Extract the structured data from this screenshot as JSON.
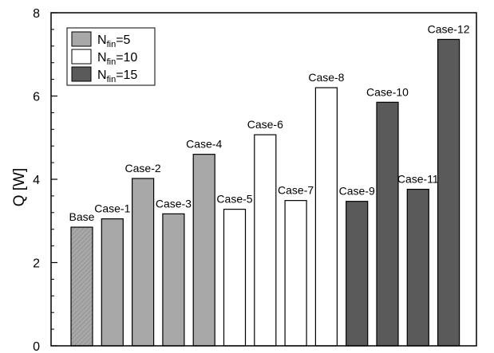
{
  "chart_data": {
    "type": "bar",
    "title": "",
    "xlabel": "",
    "ylabel": "Q [W]",
    "ylim": [
      0,
      8
    ],
    "yticks": [
      0,
      2,
      4,
      6,
      8
    ],
    "grid": false,
    "legend_position": "top-left",
    "categories": [
      "Base",
      "Case-1",
      "Case-2",
      "Case-3",
      "Case-4",
      "Case-5",
      "Case-6",
      "Case-7",
      "Case-8",
      "Case-9",
      "Case-10",
      "Case-11",
      "Case-12"
    ],
    "values": [
      2.85,
      3.05,
      4.02,
      3.17,
      4.6,
      3.28,
      5.07,
      3.49,
      6.2,
      3.47,
      5.85,
      3.76,
      7.36
    ],
    "bar_group": [
      0,
      0,
      0,
      0,
      0,
      1,
      1,
      1,
      1,
      2,
      2,
      2,
      2
    ],
    "legend": [
      {
        "base": "N",
        "sub": "fin",
        "value": "=5",
        "color": "#a8a8a8"
      },
      {
        "base": "N",
        "sub": "fin",
        "value": "=10",
        "color": "#ffffff"
      },
      {
        "base": "N",
        "sub": "fin",
        "value": "=15",
        "color": "#5a5a5a"
      }
    ],
    "base_bar_hatched": true
  }
}
